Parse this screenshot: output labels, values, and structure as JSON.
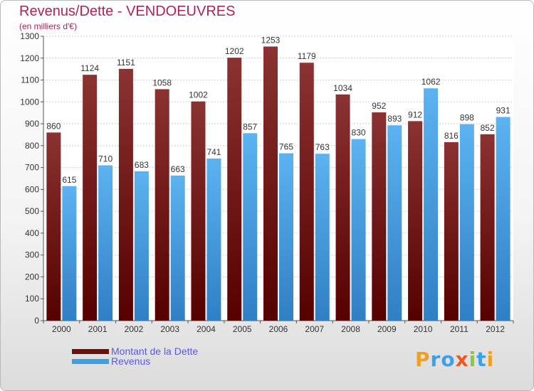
{
  "title": "Revenus/Dette - VENDOEUVRES",
  "subtitle": "(en milliers d'€)",
  "colors": {
    "dette": "#7a1c1c",
    "revenus": "#3f9fe4",
    "title": "#b0205a",
    "legend_text": "#5a5ad8"
  },
  "legend": [
    {
      "label": "Montant de la Dette",
      "color": "#6b0f0f"
    },
    {
      "label": "Revenus",
      "color": "#3f9fe4"
    }
  ],
  "logo": {
    "text": "Proxiti"
  },
  "chart_data": {
    "type": "bar",
    "title": "Revenus/Dette - VENDOEUVRES",
    "subtitle": "(en milliers d'€)",
    "categories": [
      "2000",
      "2001",
      "2002",
      "2003",
      "2004",
      "2005",
      "2006",
      "2007",
      "2008",
      "2009",
      "2010",
      "2011",
      "2012"
    ],
    "series": [
      {
        "name": "Montant de la Dette",
        "values": [
          860,
          1124,
          1151,
          1058,
          1002,
          1202,
          1253,
          1179,
          1034,
          952,
          912,
          816,
          852
        ]
      },
      {
        "name": "Revenus",
        "values": [
          615,
          710,
          683,
          663,
          741,
          857,
          765,
          763,
          830,
          893,
          1062,
          898,
          931
        ]
      }
    ],
    "ylim": [
      0,
      1300
    ],
    "yticks": [
      0,
      100,
      200,
      300,
      400,
      500,
      600,
      700,
      800,
      900,
      1000,
      1100,
      1200,
      1300
    ],
    "grid": true,
    "legend_position": "bottom-left"
  }
}
